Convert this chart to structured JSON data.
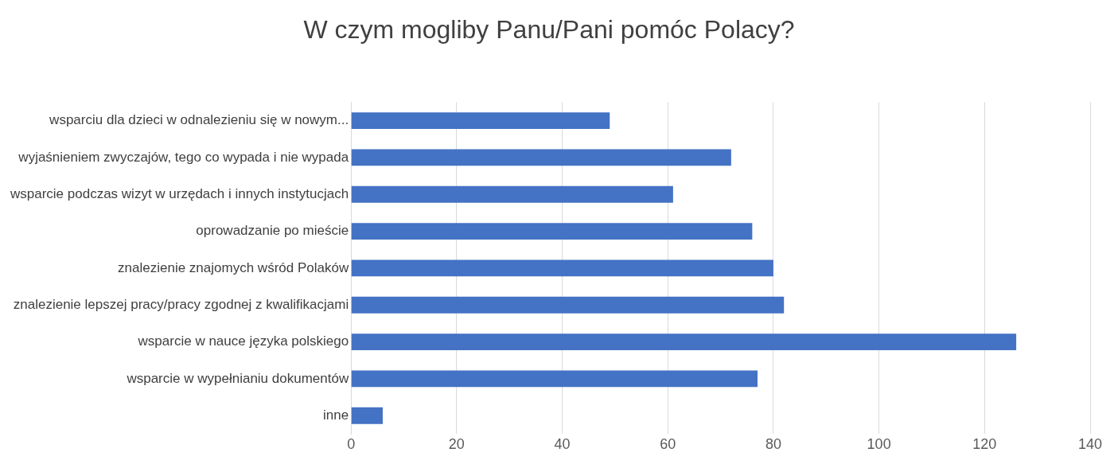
{
  "chart_data": {
    "type": "bar",
    "orientation": "horizontal",
    "title": "W czym mogliby Panu/Pani pomóc Polacy?",
    "categories": [
      "wsparciu dla dzieci w odnalezieniu się w nowym...",
      "wyjaśnieniem zwyczajów, tego co wypada i nie wypada",
      "wsparcie podczas wizyt w urzędach i innych instytucjach",
      "oprowadzanie po mieście",
      "znalezienie znajomych wśród Polaków",
      "znalezienie lepszej pracy/pracy zgodnej z kwalifikacjami",
      "wsparcie w nauce języka polskiego",
      "wsparcie w wypełnianiu dokumentów",
      "inne"
    ],
    "values": [
      49,
      72,
      61,
      76,
      80,
      82,
      126,
      77,
      6
    ],
    "color": "#4472c4",
    "xlim": [
      0,
      140
    ],
    "xticks": [
      0,
      20,
      40,
      60,
      80,
      100,
      120,
      140
    ],
    "grid": "x",
    "legend": false
  }
}
